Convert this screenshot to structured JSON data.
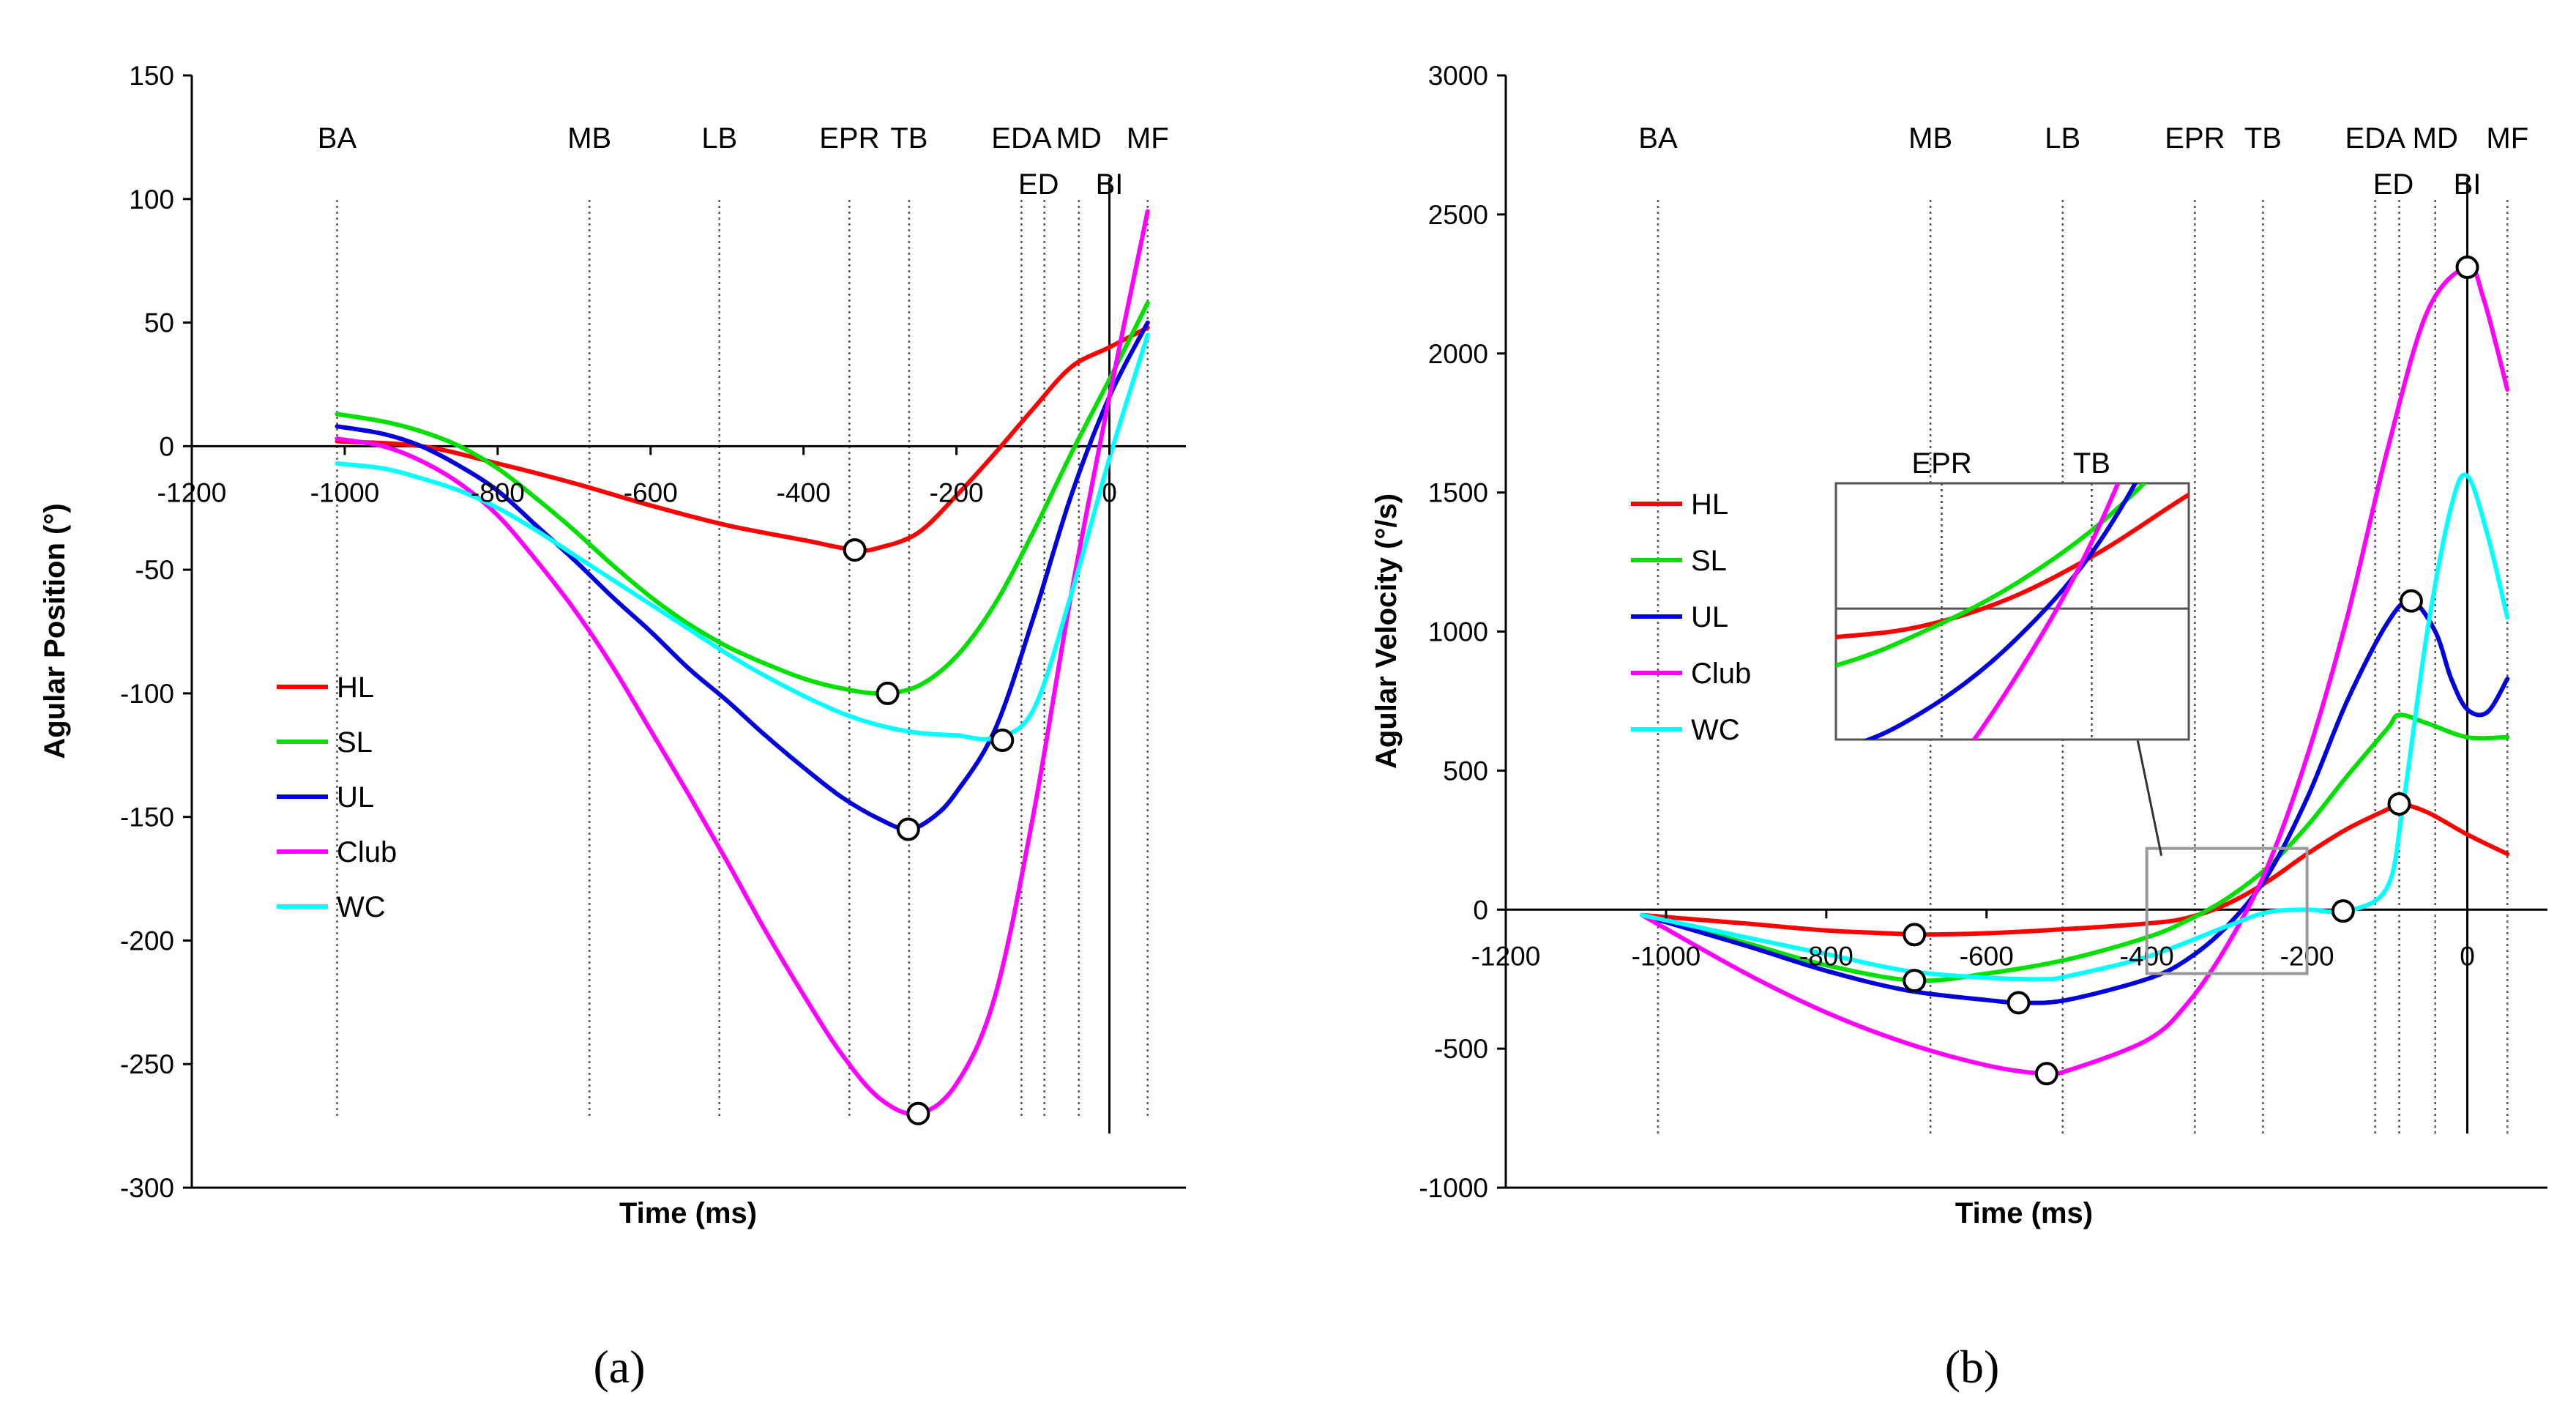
{
  "chart_data": [
    {
      "type": "line",
      "panel_caption": "(a)",
      "title": "",
      "xlabel": "Time (ms)",
      "ylabel": "Agular Position (°)",
      "xlim": [
        -1200,
        100
      ],
      "ylim": [
        -300,
        150
      ],
      "xticks": [
        "-1200",
        "-1000",
        "-800",
        "-600",
        "-400",
        "-200",
        "0"
      ],
      "xtick_values": [
        -1200,
        -1000,
        -800,
        -600,
        -400,
        -200,
        0
      ],
      "yticks": [
        "150",
        "100",
        "50",
        "0",
        "-50",
        "-100",
        "-150",
        "-200",
        "-250",
        "-300"
      ],
      "ytick_values": [
        150,
        100,
        50,
        0,
        -50,
        -100,
        -150,
        -200,
        -250,
        -300
      ],
      "events_top": [
        {
          "label": "BA",
          "x": -1010
        },
        {
          "label": "MB",
          "x": -680
        },
        {
          "label": "LB",
          "x": -510
        },
        {
          "label": "EPR",
          "x": -340
        },
        {
          "label": "TB",
          "x": -262
        },
        {
          "label": "EDA",
          "x": -115
        },
        {
          "label": "MD",
          "x": -40
        },
        {
          "label": "MF",
          "x": 50
        }
      ],
      "events_sub": [
        {
          "label": "ED",
          "x": -85
        },
        {
          "label": "BI",
          "x": 0
        }
      ],
      "legend": [
        "HL",
        "SL",
        "UL",
        "Club",
        "WC"
      ],
      "series": [
        {
          "name": "HL",
          "color": "#ff0000",
          "x": [
            -1010,
            -900,
            -800,
            -700,
            -600,
            -500,
            -400,
            -333,
            -300,
            -250,
            -200,
            -150,
            -100,
            -50,
            0,
            50
          ],
          "y": [
            2,
            0,
            -7,
            -15,
            -24,
            -32,
            -38,
            -42,
            -41,
            -35,
            -20,
            -3,
            15,
            32,
            40,
            48
          ],
          "markers": [
            [
              -333,
              -42
            ]
          ]
        },
        {
          "name": "SL",
          "color": "#00e000",
          "x": [
            -1010,
            -950,
            -900,
            -850,
            -800,
            -750,
            -700,
            -650,
            -600,
            -550,
            -500,
            -450,
            -400,
            -350,
            -300,
            -250,
            -200,
            -150,
            -100,
            -50,
            0,
            50
          ],
          "y": [
            13,
            10,
            6,
            0,
            -9,
            -21,
            -34,
            -48,
            -61,
            -72,
            -81,
            -88,
            -94,
            -98,
            -100,
            -97,
            -85,
            -64,
            -35,
            -3,
            27,
            58
          ],
          "markers": [
            [
              -290,
              -100
            ]
          ]
        },
        {
          "name": "UL",
          "color": "#0000dd",
          "x": [
            -1010,
            -950,
            -900,
            -850,
            -800,
            -750,
            -700,
            -650,
            -600,
            -550,
            -500,
            -450,
            -400,
            -350,
            -300,
            -263,
            -230,
            -200,
            -150,
            -100,
            -50,
            0,
            50
          ],
          "y": [
            8,
            5,
            0,
            -8,
            -18,
            -32,
            -46,
            -61,
            -75,
            -90,
            -103,
            -117,
            -130,
            -142,
            -151,
            -155,
            -150,
            -140,
            -115,
            -70,
            -20,
            20,
            50
          ],
          "markers": [
            [
              -263,
              -155
            ]
          ]
        },
        {
          "name": "Club",
          "color": "#ff00ff",
          "x": [
            -1010,
            -950,
            -900,
            -850,
            -800,
            -750,
            -700,
            -650,
            -600,
            -550,
            -500,
            -450,
            -400,
            -350,
            -300,
            -250,
            -200,
            -150,
            -100,
            -50,
            0,
            50
          ],
          "y": [
            3,
            0,
            -6,
            -15,
            -28,
            -46,
            -66,
            -89,
            -115,
            -141,
            -168,
            -196,
            -222,
            -246,
            -264,
            -270,
            -258,
            -223,
            -150,
            -60,
            20,
            95
          ],
          "markers": [
            [
              -250,
              -270
            ]
          ]
        },
        {
          "name": "WC",
          "color": "#00ffff",
          "x": [
            -1010,
            -950,
            -900,
            -850,
            -800,
            -750,
            -700,
            -650,
            -600,
            -550,
            -500,
            -450,
            -400,
            -350,
            -300,
            -250,
            -200,
            -150,
            -100,
            -50,
            0,
            50
          ],
          "y": [
            -7,
            -9,
            -13,
            -18,
            -25,
            -34,
            -44,
            -54,
            -64,
            -74,
            -84,
            -93,
            -101,
            -108,
            -113,
            -116,
            -117,
            -118,
            -107,
            -60,
            -5,
            45
          ],
          "markers": [
            [
              -140,
              -119
            ]
          ]
        }
      ]
    },
    {
      "type": "line",
      "panel_caption": "(b)",
      "title": "",
      "xlabel": "Time (ms)",
      "ylabel": "Agular Velocity (°/s)",
      "xlim": [
        -1200,
        100
      ],
      "ylim": [
        -1000,
        3000
      ],
      "xticks": [
        "-1200",
        "-1000",
        "-800",
        "-600",
        "-400",
        "-200",
        "0"
      ],
      "xtick_values": [
        -1200,
        -1000,
        -800,
        -600,
        -400,
        -200,
        0
      ],
      "yticks": [
        "3000",
        "2500",
        "2000",
        "1500",
        "1000",
        "500",
        "0",
        "-500",
        "-1000"
      ],
      "ytick_values": [
        3000,
        2500,
        2000,
        1500,
        1000,
        500,
        0,
        -500,
        -1000
      ],
      "events_top": [
        {
          "label": "BA",
          "x": -1010
        },
        {
          "label": "MB",
          "x": -670
        },
        {
          "label": "LB",
          "x": -505
        },
        {
          "label": "EPR",
          "x": -340
        },
        {
          "label": "TB",
          "x": -255
        },
        {
          "label": "EDA",
          "x": -115
        },
        {
          "label": "MD",
          "x": -40
        },
        {
          "label": "MF",
          "x": 50
        }
      ],
      "events_sub": [
        {
          "label": "ED",
          "x": -85
        },
        {
          "label": "BI",
          "x": 0
        }
      ],
      "legend": [
        "HL",
        "SL",
        "UL",
        "Club",
        "WC"
      ],
      "inset": {
        "labels": [
          "EPR",
          "TB"
        ],
        "region_x": [
          -400,
          -200
        ],
        "region_y": [
          -230,
          220
        ]
      },
      "series": [
        {
          "name": "HL",
          "color": "#ff0000",
          "x": [
            -1030,
            -900,
            -800,
            -700,
            -680,
            -600,
            -500,
            -400,
            -350,
            -300,
            -250,
            -200,
            -150,
            -100,
            -85,
            -50,
            0,
            50
          ],
          "y": [
            -20,
            -50,
            -75,
            -88,
            -90,
            -85,
            -70,
            -50,
            -30,
            20,
            100,
            200,
            290,
            360,
            380,
            350,
            270,
            200
          ],
          "markers": [
            [
              -690,
              -90
            ]
          ]
        },
        {
          "name": "SL",
          "color": "#00e000",
          "x": [
            -1030,
            -900,
            -800,
            -690,
            -600,
            -500,
            -400,
            -350,
            -300,
            -250,
            -200,
            -150,
            -100,
            -85,
            -50,
            0,
            50
          ],
          "y": [
            -20,
            -120,
            -200,
            -255,
            -230,
            -180,
            -100,
            -40,
            40,
            150,
            300,
            480,
            650,
            700,
            670,
            620,
            620
          ],
          "markers": [
            [
              -690,
              -255
            ]
          ]
        },
        {
          "name": "UL",
          "color": "#0000dd",
          "x": [
            -1030,
            -900,
            -800,
            -700,
            -600,
            -555,
            -500,
            -400,
            -350,
            -300,
            -250,
            -200,
            -150,
            -100,
            -70,
            -40,
            -20,
            0,
            25,
            50
          ],
          "y": [
            -20,
            -130,
            -220,
            -290,
            -325,
            -335,
            -325,
            -250,
            -180,
            -60,
            120,
            400,
            750,
            1030,
            1110,
            1000,
            830,
            720,
            710,
            830
          ],
          "markers": [
            [
              -560,
              -335
            ],
            [
              -70,
              1110
            ]
          ]
        },
        {
          "name": "Club",
          "color": "#ff00ff",
          "x": [
            -1030,
            -900,
            -800,
            -700,
            -600,
            -530,
            -500,
            -400,
            -350,
            -300,
            -250,
            -200,
            -150,
            -100,
            -50,
            0,
            20,
            50
          ],
          "y": [
            -20,
            -230,
            -370,
            -480,
            -560,
            -590,
            -580,
            -470,
            -340,
            -130,
            150,
            550,
            1050,
            1650,
            2150,
            2310,
            2200,
            1870
          ],
          "markers": [
            [
              -525,
              -590
            ],
            [
              0,
              2310
            ]
          ]
        },
        {
          "name": "WC",
          "color": "#00ffff",
          "x": [
            -1030,
            -900,
            -800,
            -700,
            -600,
            -530,
            -500,
            -400,
            -300,
            -250,
            -200,
            -150,
            -100,
            -80,
            -50,
            -20,
            0,
            25,
            50
          ],
          "y": [
            -20,
            -100,
            -160,
            -220,
            -245,
            -250,
            -240,
            -170,
            -60,
            -10,
            0,
            -5,
            80,
            380,
            1000,
            1450,
            1560,
            1350,
            1050
          ],
          "markers": [
            [
              -155,
              -5
            ],
            [
              -85,
              380
            ]
          ]
        }
      ]
    }
  ]
}
